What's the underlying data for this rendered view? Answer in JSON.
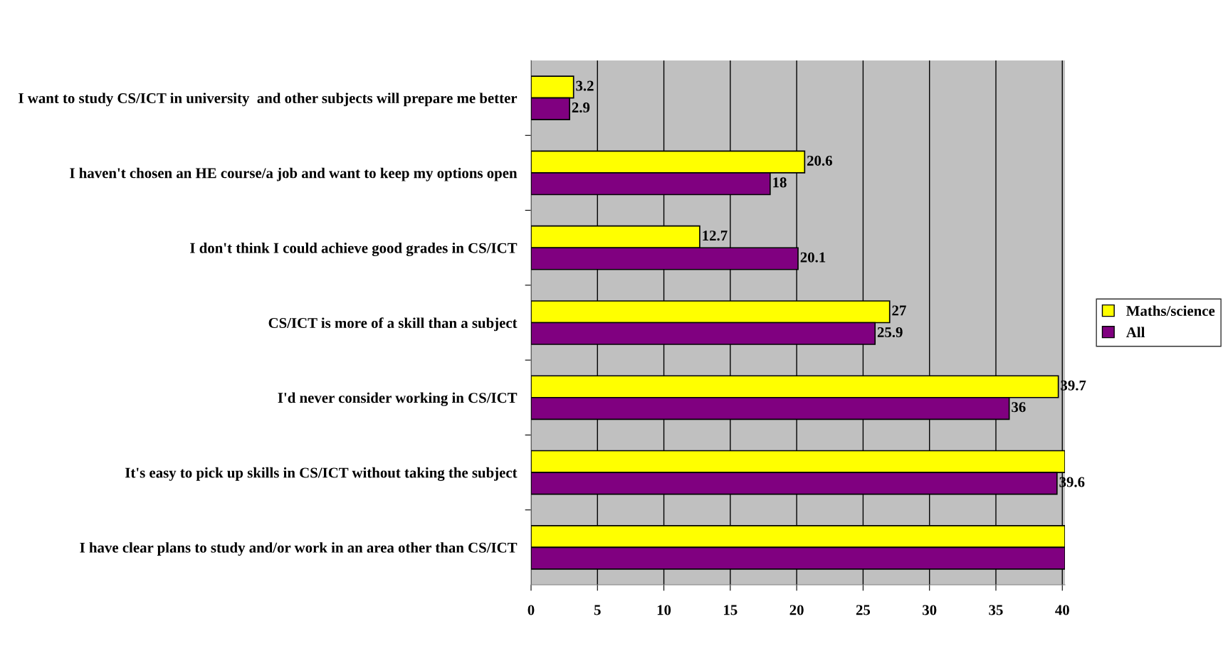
{
  "chart_data": {
    "type": "bar",
    "orientation": "horizontal",
    "categories": [
      "I want to study CS/ICT in university  and other subjects will prepare me better",
      "I haven't chosen an HE course/a job and want to keep my options open",
      "I don't think I could achieve good grades in CS/ICT",
      "CS/ICT is more of a skill than a subject",
      "I'd never consider working in CS/ICT",
      "It's easy to pick up skills in CS/ICT without taking the subject",
      "I have clear plans to study and/or work in an area other than CS/ICT"
    ],
    "series": [
      {
        "name": "Maths/science",
        "color": "#ffff00",
        "values": [
          3.2,
          20.6,
          12.7,
          27,
          39.7,
          40.2,
          40.2
        ],
        "value_labels": [
          "3.2",
          "20.6",
          "12.7",
          "27",
          "39.7",
          null,
          null
        ]
      },
      {
        "name": "All",
        "color": "#800080",
        "values": [
          2.9,
          18,
          20.1,
          25.9,
          36,
          39.6,
          40.2
        ],
        "value_labels": [
          "2.9",
          "18",
          "20.1",
          "25.9",
          "36",
          "39.6",
          null
        ]
      }
    ],
    "xlim": [
      0,
      40.2
    ],
    "xticks": [
      0,
      5,
      10,
      15,
      20,
      25,
      30,
      35,
      40
    ],
    "grid": "x",
    "legend": "right"
  }
}
